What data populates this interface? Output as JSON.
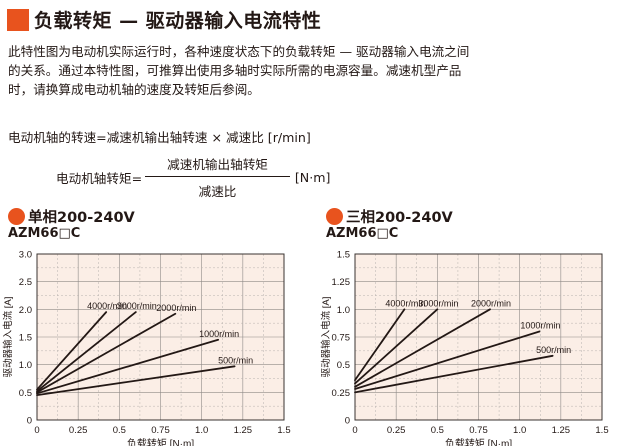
{
  "header": {
    "title": "负载转矩 — 驱动器输入电流特性",
    "icon": "orange-square-icon",
    "accent_color": "#e8531e"
  },
  "description": "此特性图为电动机实际运行时，各种速度状态下的负载转矩 — 驱动器输入电流之间的关系。通过本特性图，可推算出使用多轴时实际所需的电源容量。减速机型产品时，请换算成电动机轴的速度及转矩后参阅。",
  "formula_speed": "电动机轴的转速=减速机输出轴转速 × 减速比 [r/min]",
  "formula_torque": {
    "lhs": "电动机轴转矩=",
    "numerator": "减速机输出轴转矩",
    "denominator": "减速比",
    "unit": "[N·m]"
  },
  "chart_data": [
    {
      "type": "line",
      "heading": "单相200-240V",
      "model": "AZM66□C",
      "xlabel": "负载转矩 [N·m]",
      "ylabel": "驱动器输入电流 [A]",
      "xlim": [
        0,
        1.5
      ],
      "ylim": [
        0,
        3.0
      ],
      "xticks": [
        "0",
        "0.25",
        "0.5",
        "0.75",
        "1.0",
        "1.25",
        "1.5"
      ],
      "yticks": [
        "0",
        "0.5",
        "1.0",
        "1.5",
        "2.0",
        "2.5",
        "3.0"
      ],
      "grid": true,
      "background": "#fbeee6",
      "series": [
        {
          "name": "4000r/min",
          "x": [
            0,
            0.42
          ],
          "y": [
            0.55,
            1.95
          ]
        },
        {
          "name": "3000r/min",
          "x": [
            0,
            0.6
          ],
          "y": [
            0.52,
            1.95
          ]
        },
        {
          "name": "2000r/min",
          "x": [
            0,
            0.84
          ],
          "y": [
            0.5,
            1.92
          ]
        },
        {
          "name": "1000r/min",
          "x": [
            0,
            1.1
          ],
          "y": [
            0.48,
            1.45
          ]
        },
        {
          "name": "500r/min",
          "x": [
            0,
            1.2
          ],
          "y": [
            0.45,
            0.97
          ]
        }
      ]
    },
    {
      "type": "line",
      "heading": "三相200-240V",
      "model": "AZM66□C",
      "xlabel": "负载转矩 [N·m]",
      "ylabel": "驱动器输入电流 [A]",
      "xlim": [
        0,
        1.5
      ],
      "ylim": [
        0,
        1.5
      ],
      "xticks": [
        "0",
        "0.25",
        "0.5",
        "0.75",
        "1.0",
        "1.25",
        "1.5"
      ],
      "yticks": [
        "0",
        "0.25",
        "0.5",
        "0.75",
        "1.0",
        "1.25",
        "1.5"
      ],
      "grid": true,
      "background": "#fbeee6",
      "series": [
        {
          "name": "4000r/min",
          "x": [
            0,
            0.3
          ],
          "y": [
            0.36,
            1.0
          ]
        },
        {
          "name": "3000r/min",
          "x": [
            0,
            0.5
          ],
          "y": [
            0.33,
            1.0
          ]
        },
        {
          "name": "2000r/min",
          "x": [
            0,
            0.82
          ],
          "y": [
            0.3,
            1.0
          ]
        },
        {
          "name": "1000r/min",
          "x": [
            0,
            1.12
          ],
          "y": [
            0.28,
            0.8
          ]
        },
        {
          "name": "500r/min",
          "x": [
            0,
            1.2
          ],
          "y": [
            0.25,
            0.58
          ]
        }
      ]
    }
  ]
}
